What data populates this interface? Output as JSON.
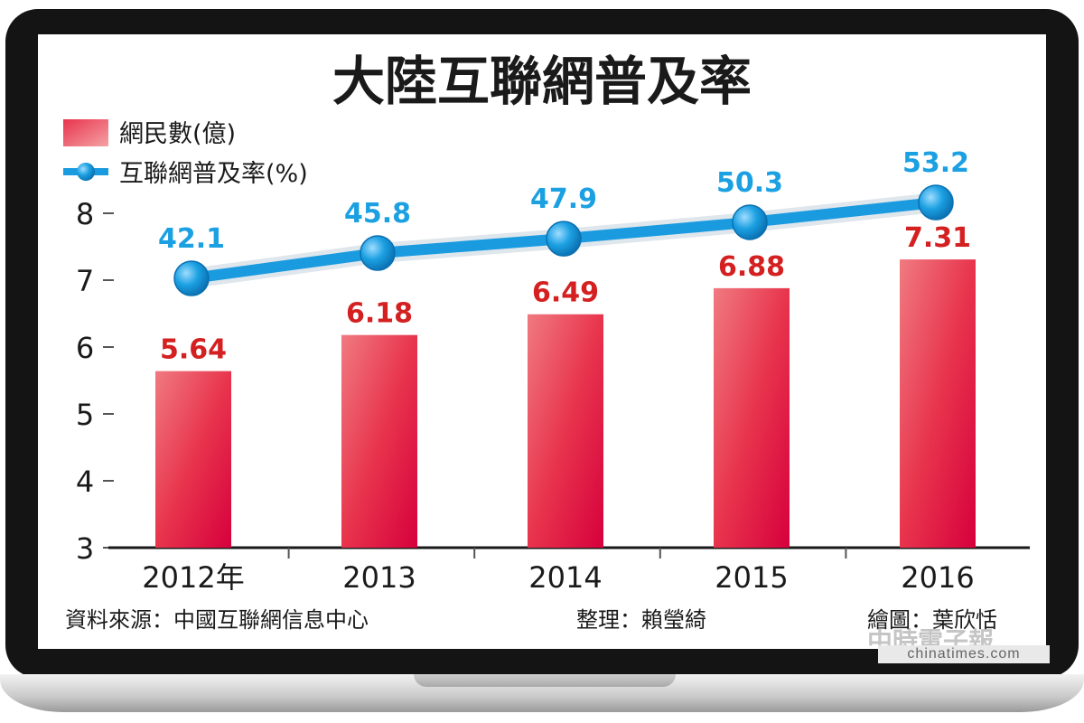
{
  "chart_data": {
    "type": "bar",
    "title": "大陸互聯網普及率",
    "categories": [
      "2012年",
      "2013",
      "2014",
      "2015",
      "2016"
    ],
    "series": [
      {
        "name": "網民數(億)",
        "type": "bar",
        "values": [
          5.64,
          6.18,
          6.49,
          6.88,
          7.31
        ],
        "labels": [
          "5.64",
          "6.18",
          "6.49",
          "6.88",
          "7.31"
        ]
      },
      {
        "name": "互聯網普及率(%)",
        "type": "line",
        "values": [
          42.1,
          45.8,
          47.9,
          50.3,
          53.2
        ],
        "labels": [
          "42.1",
          "45.8",
          "47.9",
          "50.3",
          "53.2"
        ]
      }
    ],
    "yticks": [
      "3",
      "4",
      "5",
      "6",
      "7",
      "8"
    ],
    "ylim": [
      3,
      8
    ],
    "grid": false,
    "legend_position": "top-left"
  },
  "footer": {
    "source": "資料來源：中國互聯網信息中心",
    "compiler": "整理：賴瑩綺",
    "artist": "繪圖：葉欣恬"
  },
  "watermark": {
    "site": "chinatimes.com",
    "logo_text": "中時電子報"
  },
  "colors": {
    "bar": "#e8344d",
    "bar_light": "#f07a80",
    "bar_dark": "#d6003c",
    "line": "#1a9be0",
    "line_label": "#1ba0e2",
    "bar_label": "#d42020",
    "text": "#1a1a1a",
    "frame": "#141414"
  }
}
